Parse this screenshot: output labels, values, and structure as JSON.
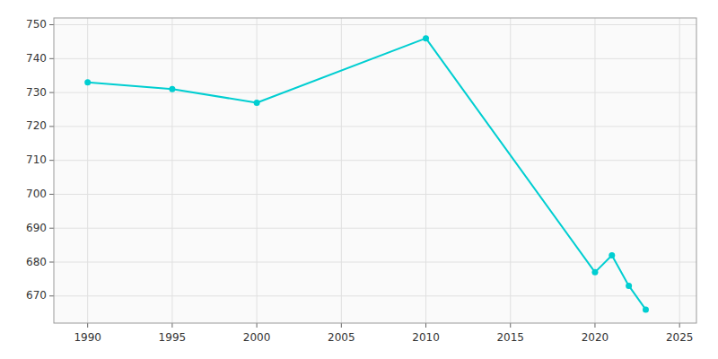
{
  "chart_data": {
    "type": "line",
    "x": [
      1990,
      1995,
      2000,
      2010,
      2020,
      2021,
      2022,
      2023
    ],
    "values": [
      733,
      731,
      727,
      746,
      677,
      682,
      673,
      666
    ],
    "color": "#00CED1",
    "marker": "circle",
    "xlim": [
      1988,
      2026
    ],
    "ylim": [
      662,
      752
    ],
    "xticks": [
      1990,
      1995,
      2000,
      2005,
      2010,
      2015,
      2020,
      2025
    ],
    "yticks": [
      670,
      680,
      690,
      700,
      710,
      720,
      730,
      740,
      750
    ],
    "grid": true
  }
}
